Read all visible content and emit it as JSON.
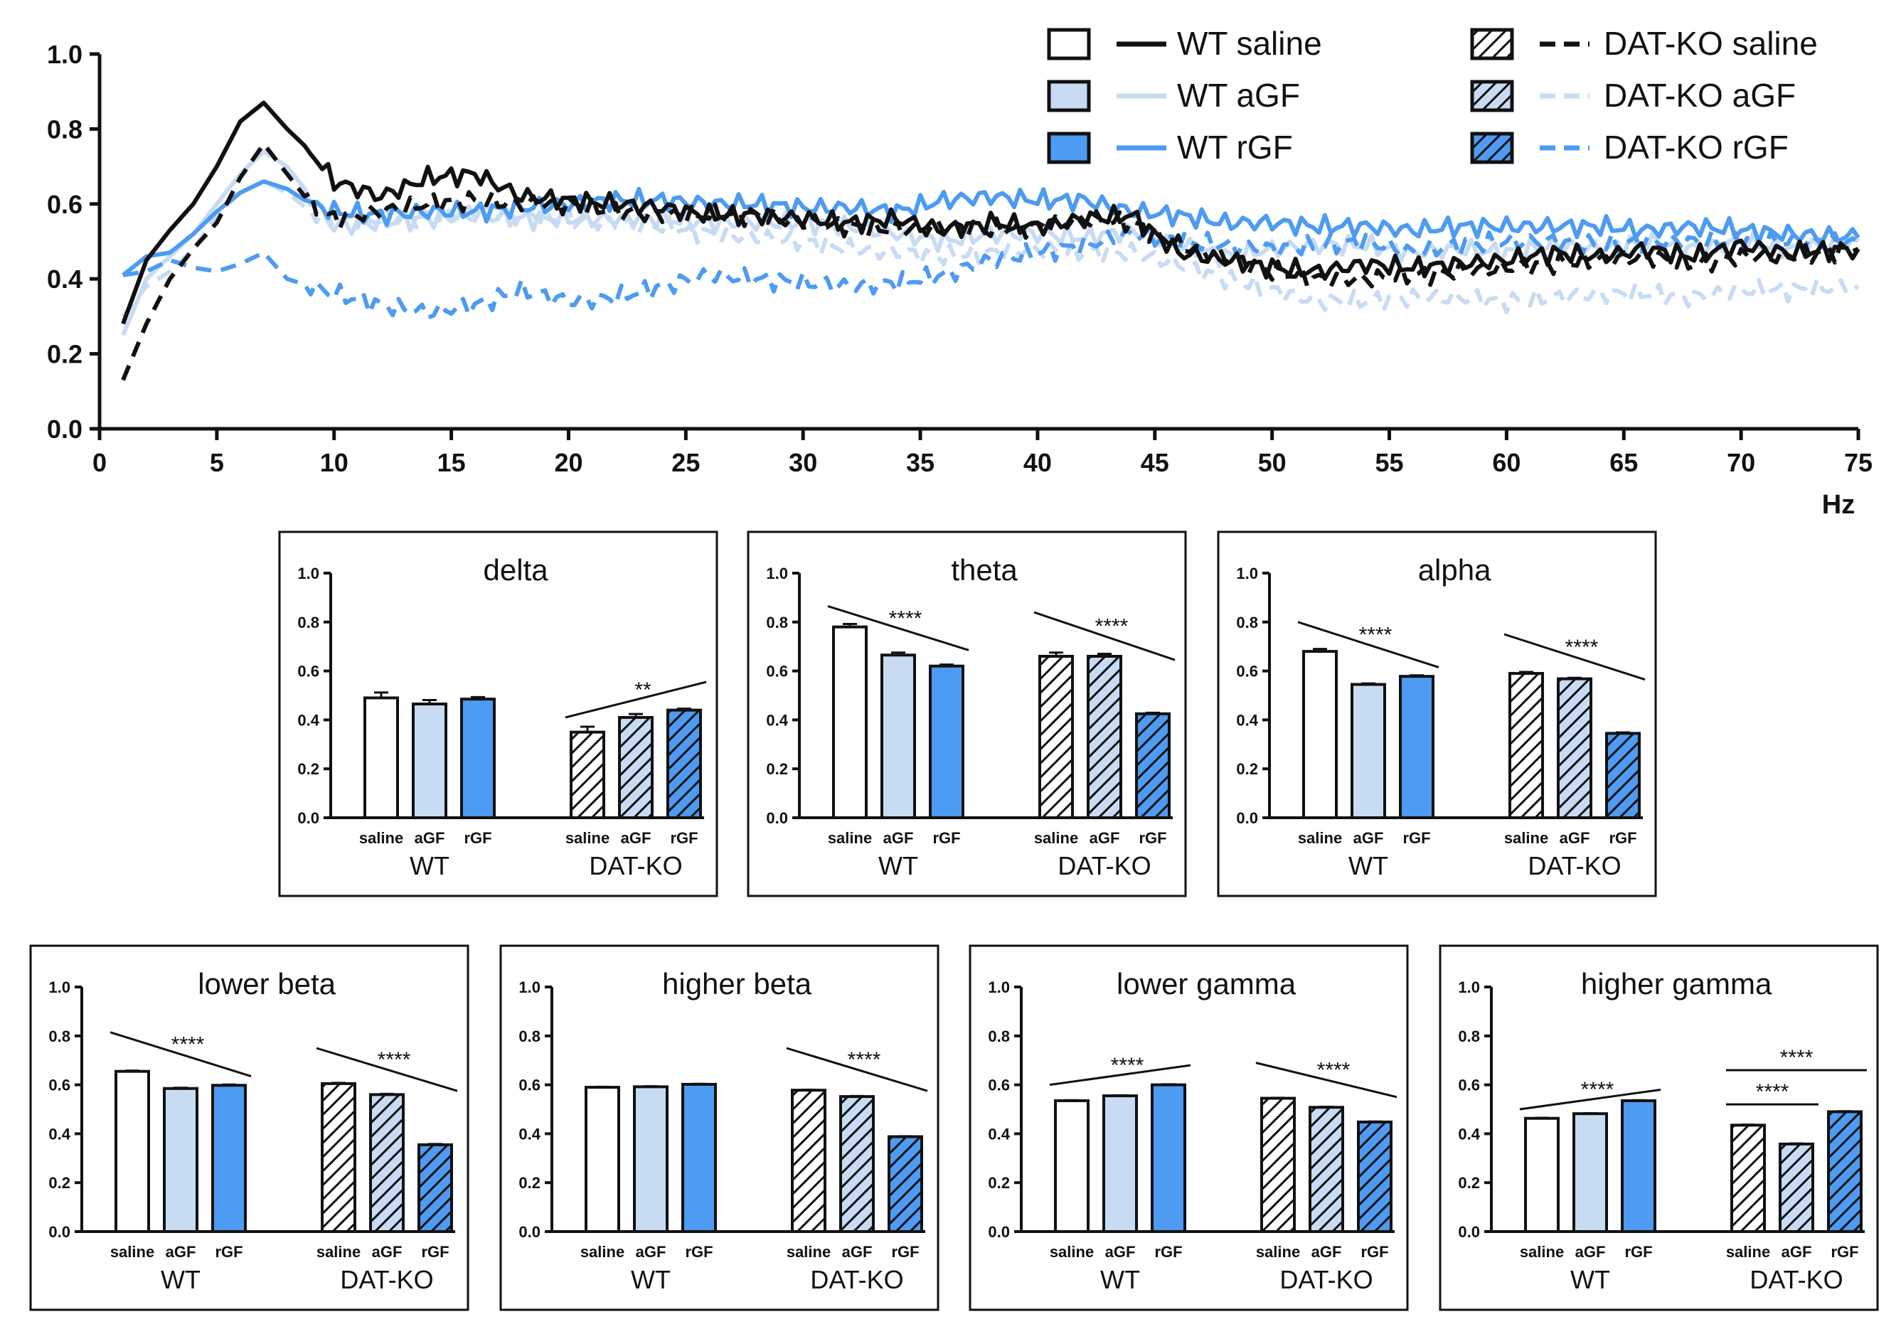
{
  "colors": {
    "black": "#111111",
    "light_blue": "#c7dcf3",
    "mid_blue": "#4d9bf2"
  },
  "legend": [
    {
      "label": "WT saline",
      "color": "#111111",
      "dashed": false,
      "hatched": false
    },
    {
      "label": "WT aGF",
      "color": "#c7dcf3",
      "dashed": false,
      "hatched": false
    },
    {
      "label": "WT rGF",
      "color": "#4d9bf2",
      "dashed": false,
      "hatched": false
    },
    {
      "label": "DAT-KO saline",
      "color": "#111111",
      "dashed": true,
      "hatched": true
    },
    {
      "label": "DAT-KO aGF",
      "color": "#c7dcf3",
      "dashed": true,
      "hatched": true
    },
    {
      "label": "DAT-KO rGF",
      "color": "#4d9bf2",
      "dashed": true,
      "hatched": true
    }
  ],
  "chart_data": [
    {
      "type": "line",
      "title": "",
      "xlabel": "Hz",
      "ylabel": "",
      "xlim": [
        0,
        75
      ],
      "ylim": [
        0,
        1.0
      ],
      "xticks": [
        0,
        5,
        10,
        15,
        20,
        25,
        30,
        35,
        40,
        45,
        50,
        55,
        60,
        65,
        70,
        75
      ],
      "yticks": [
        "0.0",
        "0.2",
        "0.4",
        "0.6",
        "0.8",
        "1.0"
      ],
      "x": [
        1,
        2,
        3,
        4,
        5,
        6,
        7,
        8,
        9,
        10,
        12,
        14,
        16,
        18,
        20,
        22,
        24,
        26,
        28,
        30,
        32,
        34,
        36,
        38,
        40,
        42,
        44,
        46,
        48,
        50,
        52,
        54,
        56,
        58,
        60,
        62,
        64,
        66,
        68,
        70,
        72,
        75
      ],
      "series": [
        {
          "name": "WT saline",
          "color": "#111111",
          "dashed": false,
          "values": [
            0.28,
            0.45,
            0.53,
            0.6,
            0.7,
            0.82,
            0.87,
            0.8,
            0.74,
            0.66,
            0.62,
            0.67,
            0.68,
            0.62,
            0.61,
            0.6,
            0.59,
            0.57,
            0.57,
            0.56,
            0.55,
            0.56,
            0.53,
            0.55,
            0.54,
            0.56,
            0.57,
            0.47,
            0.45,
            0.43,
            0.42,
            0.44,
            0.43,
            0.44,
            0.45,
            0.47,
            0.46,
            0.48,
            0.46,
            0.49,
            0.47,
            0.48
          ]
        },
        {
          "name": "WT aGF",
          "color": "#c7dcf3",
          "dashed": false,
          "values": [
            0.25,
            0.4,
            0.46,
            0.52,
            0.6,
            0.68,
            0.74,
            0.7,
            0.62,
            0.54,
            0.55,
            0.56,
            0.57,
            0.56,
            0.56,
            0.56,
            0.56,
            0.55,
            0.55,
            0.55,
            0.54,
            0.52,
            0.5,
            0.52,
            0.52,
            0.51,
            0.53,
            0.49,
            0.46,
            0.48,
            0.49,
            0.49,
            0.47,
            0.48,
            0.47,
            0.49,
            0.48,
            0.5,
            0.48,
            0.5,
            0.48,
            0.5
          ]
        },
        {
          "name": "WT rGF",
          "color": "#4d9bf2",
          "dashed": false,
          "values": [
            0.41,
            0.46,
            0.47,
            0.52,
            0.58,
            0.63,
            0.66,
            0.64,
            0.6,
            0.58,
            0.57,
            0.58,
            0.58,
            0.59,
            0.6,
            0.61,
            0.61,
            0.6,
            0.6,
            0.59,
            0.59,
            0.58,
            0.61,
            0.62,
            0.61,
            0.61,
            0.58,
            0.57,
            0.55,
            0.55,
            0.54,
            0.54,
            0.53,
            0.54,
            0.54,
            0.54,
            0.54,
            0.53,
            0.54,
            0.53,
            0.52,
            0.51
          ]
        },
        {
          "name": "DAT-KO saline",
          "color": "#111111",
          "dashed": true,
          "values": [
            0.13,
            0.28,
            0.4,
            0.48,
            0.55,
            0.67,
            0.76,
            0.68,
            0.6,
            0.56,
            0.58,
            0.6,
            0.61,
            0.6,
            0.6,
            0.58,
            0.57,
            0.57,
            0.57,
            0.55,
            0.54,
            0.53,
            0.54,
            0.53,
            0.54,
            0.56,
            0.55,
            0.49,
            0.46,
            0.42,
            0.4,
            0.4,
            0.41,
            0.42,
            0.43,
            0.44,
            0.45,
            0.46,
            0.44,
            0.46,
            0.46,
            0.48
          ]
        },
        {
          "name": "DAT-KO aGF",
          "color": "#c7dcf3",
          "dashed": true,
          "values": [
            0.3,
            0.38,
            0.42,
            0.48,
            0.57,
            0.63,
            0.66,
            0.63,
            0.58,
            0.55,
            0.56,
            0.57,
            0.58,
            0.57,
            0.56,
            0.55,
            0.54,
            0.52,
            0.51,
            0.5,
            0.48,
            0.47,
            0.46,
            0.47,
            0.48,
            0.47,
            0.47,
            0.44,
            0.4,
            0.37,
            0.34,
            0.34,
            0.35,
            0.35,
            0.34,
            0.35,
            0.36,
            0.36,
            0.35,
            0.37,
            0.37,
            0.38
          ]
        },
        {
          "name": "DAT-KO rGF",
          "color": "#4d9bf2",
          "dashed": true,
          "values": [
            0.41,
            0.42,
            0.45,
            0.43,
            0.42,
            0.44,
            0.47,
            0.4,
            0.38,
            0.36,
            0.33,
            0.31,
            0.33,
            0.37,
            0.34,
            0.35,
            0.38,
            0.41,
            0.4,
            0.39,
            0.38,
            0.39,
            0.41,
            0.45,
            0.47,
            0.49,
            0.52,
            0.5,
            0.49,
            0.48,
            0.49,
            0.5,
            0.47,
            0.49,
            0.5,
            0.5,
            0.49,
            0.5,
            0.5,
            0.5,
            0.5,
            0.5
          ]
        }
      ]
    },
    {
      "type": "bar",
      "title": "delta",
      "ylim": [
        0,
        1.0
      ],
      "yticks": [
        "0.0",
        "0.2",
        "0.4",
        "0.6",
        "0.8",
        "1.0"
      ],
      "groups": [
        "WT",
        "DAT-KO"
      ],
      "categories": [
        "saline",
        "aGF",
        "rGF"
      ],
      "values": {
        "WT": [
          0.49,
          0.465,
          0.485
        ],
        "DAT-KO": [
          0.35,
          0.41,
          0.44
        ]
      },
      "errors": {
        "WT": [
          0.022,
          0.016,
          0.008
        ],
        "DAT-KO": [
          0.022,
          0.014,
          0.006
        ]
      },
      "annotations": [
        {
          "text": "**",
          "slope": "up",
          "group": "DAT-KO",
          "from": 0,
          "to": 2,
          "start": 0.41,
          "end": 0.555
        }
      ]
    },
    {
      "type": "bar",
      "title": "theta",
      "ylim": [
        0,
        1.0
      ],
      "yticks": [
        "0.0",
        "0.2",
        "0.4",
        "0.6",
        "0.8",
        "1.0"
      ],
      "groups": [
        "WT",
        "DAT-KO"
      ],
      "categories": [
        "saline",
        "aGF",
        "rGF"
      ],
      "values": {
        "WT": [
          0.78,
          0.665,
          0.62
        ],
        "DAT-KO": [
          0.66,
          0.66,
          0.425
        ]
      },
      "errors": {
        "WT": [
          0.012,
          0.01,
          0.006
        ],
        "DAT-KO": [
          0.015,
          0.01,
          0.004
        ]
      },
      "annotations": [
        {
          "text": "****",
          "slope": "down",
          "group": "WT",
          "from": 0,
          "to": 2,
          "start": 0.865,
          "end": 0.685
        },
        {
          "text": "****",
          "slope": "down",
          "group": "DAT-KO",
          "from": 0,
          "to": 2,
          "start": 0.84,
          "end": 0.645
        }
      ]
    },
    {
      "type": "bar",
      "title": "alpha",
      "ylim": [
        0,
        1.0
      ],
      "yticks": [
        "0.0",
        "0.2",
        "0.4",
        "0.6",
        "0.8",
        "1.0"
      ],
      "groups": [
        "WT",
        "DAT-KO"
      ],
      "categories": [
        "saline",
        "aGF",
        "rGF"
      ],
      "values": {
        "WT": [
          0.68,
          0.545,
          0.578
        ],
        "DAT-KO": [
          0.59,
          0.568,
          0.345
        ]
      },
      "errors": {
        "WT": [
          0.01,
          0.004,
          0.004
        ],
        "DAT-KO": [
          0.006,
          0.004,
          0.004
        ]
      },
      "annotations": [
        {
          "text": "****",
          "slope": "down",
          "group": "WT",
          "from": 0,
          "to": 2,
          "start": 0.8,
          "end": 0.615
        },
        {
          "text": "****",
          "slope": "down",
          "group": "DAT-KO",
          "from": 0,
          "to": 2,
          "start": 0.75,
          "end": 0.565
        }
      ]
    },
    {
      "type": "bar",
      "title": "lower beta",
      "ylim": [
        0,
        1.0
      ],
      "yticks": [
        "0.0",
        "0.2",
        "0.4",
        "0.6",
        "0.8",
        "1.0"
      ],
      "groups": [
        "WT",
        "DAT-KO"
      ],
      "categories": [
        "saline",
        "aGF",
        "rGF"
      ],
      "values": {
        "WT": [
          0.655,
          0.585,
          0.598
        ],
        "DAT-KO": [
          0.605,
          0.56,
          0.355
        ]
      },
      "errors": {
        "WT": [
          0.003,
          0.003,
          0.003
        ],
        "DAT-KO": [
          0.003,
          0.003,
          0.003
        ]
      },
      "annotations": [
        {
          "text": "****",
          "slope": "down",
          "group": "WT",
          "from": 0,
          "to": 2,
          "start": 0.815,
          "end": 0.635
        },
        {
          "text": "****",
          "slope": "down",
          "group": "DAT-KO",
          "from": 0,
          "to": 2,
          "start": 0.75,
          "end": 0.575
        }
      ]
    },
    {
      "type": "bar",
      "title": "higher beta",
      "ylim": [
        0,
        1.0
      ],
      "yticks": [
        "0.0",
        "0.2",
        "0.4",
        "0.6",
        "0.8",
        "1.0"
      ],
      "groups": [
        "WT",
        "DAT-KO"
      ],
      "categories": [
        "saline",
        "aGF",
        "rGF"
      ],
      "values": {
        "WT": [
          0.59,
          0.592,
          0.602
        ],
        "DAT-KO": [
          0.578,
          0.552,
          0.388
        ]
      },
      "errors": {
        "WT": [
          0.002,
          0.002,
          0.002
        ],
        "DAT-KO": [
          0.002,
          0.002,
          0.002
        ]
      },
      "annotations": [
        {
          "text": "****",
          "slope": "down",
          "group": "DAT-KO",
          "from": 0,
          "to": 2,
          "start": 0.75,
          "end": 0.575
        }
      ]
    },
    {
      "type": "bar",
      "title": "lower gamma",
      "ylim": [
        0,
        1.0
      ],
      "yticks": [
        "0.0",
        "0.2",
        "0.4",
        "0.6",
        "0.8",
        "1.0"
      ],
      "groups": [
        "WT",
        "DAT-KO"
      ],
      "categories": [
        "saline",
        "aGF",
        "rGF"
      ],
      "values": {
        "WT": [
          0.535,
          0.555,
          0.6
        ],
        "DAT-KO": [
          0.545,
          0.508,
          0.448
        ]
      },
      "errors": {
        "WT": [
          0.002,
          0.002,
          0.002
        ],
        "DAT-KO": [
          0.002,
          0.002,
          0.002
        ]
      },
      "annotations": [
        {
          "text": "****",
          "slope": "up",
          "group": "WT",
          "from": 0,
          "to": 2,
          "start": 0.6,
          "end": 0.68
        },
        {
          "text": "****",
          "slope": "down",
          "group": "DAT-KO",
          "from": 0,
          "to": 2,
          "start": 0.69,
          "end": 0.55
        }
      ]
    },
    {
      "type": "bar",
      "title": "higher gamma",
      "ylim": [
        0,
        1.0
      ],
      "yticks": [
        "0.0",
        "0.2",
        "0.4",
        "0.6",
        "0.8",
        "1.0"
      ],
      "groups": [
        "WT",
        "DAT-KO"
      ],
      "categories": [
        "saline",
        "aGF",
        "rGF"
      ],
      "values": {
        "WT": [
          0.463,
          0.482,
          0.535
        ],
        "DAT-KO": [
          0.435,
          0.358,
          0.49
        ]
      },
      "errors": {
        "WT": [
          0.002,
          0.002,
          0.002
        ],
        "DAT-KO": [
          0.002,
          0.002,
          0.002
        ]
      },
      "annotations": [
        {
          "text": "****",
          "slope": "up",
          "group": "WT",
          "from": 0,
          "to": 2,
          "start": 0.5,
          "end": 0.58
        },
        {
          "text": "****",
          "slope": "flat",
          "group": "DAT-KO",
          "from": 0,
          "to": 2,
          "start": 0.66,
          "end": 0.66
        },
        {
          "text": "****",
          "slope": "flat",
          "group": "DAT-KO",
          "from": 0,
          "to": 1,
          "start": 0.52,
          "end": 0.52
        }
      ]
    }
  ]
}
